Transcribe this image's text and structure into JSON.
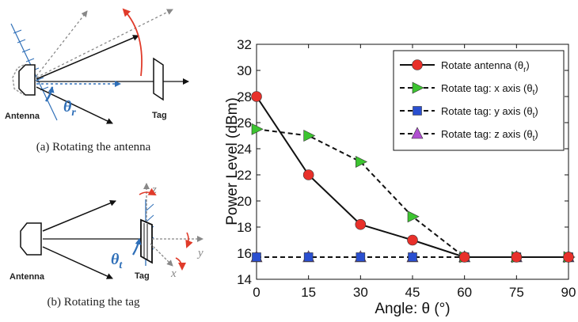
{
  "diagram_a": {
    "antenna_label": "Antenna",
    "tag_label": "Tag",
    "theta_symbol": "θ",
    "theta_sub": "r",
    "caption": "(a) Rotating the antenna"
  },
  "diagram_b": {
    "antenna_label": "Antenna",
    "tag_label": "Tag",
    "theta_symbol": "θ",
    "theta_sub": "t",
    "axis_x": "x",
    "axis_y": "y",
    "axis_z": "z",
    "caption": "(b) Rotating the tag"
  },
  "colors": {
    "antenna_series": "#e8302a",
    "tag_x_series": "#3cc430",
    "tag_y_series": "#2a4fd0",
    "tag_z_series": "#b04fd0",
    "diagram_blue": "#2f6fb8",
    "diagram_red": "#e03b2a"
  },
  "chart_data": {
    "type": "line",
    "xlabel": "Angle: θ (°)",
    "ylabel": "Power Level (dBm)",
    "x": [
      0,
      15,
      30,
      45,
      60,
      75,
      90
    ],
    "xlim": [
      0,
      90
    ],
    "ylim": [
      14,
      32
    ],
    "xticks": [
      "0",
      "15",
      "30",
      "45",
      "60",
      "75",
      "90"
    ],
    "yticks": [
      "14",
      "16",
      "18",
      "20",
      "22",
      "24",
      "26",
      "28",
      "30",
      "32"
    ],
    "grid": false,
    "legend_position": "top-right",
    "series": [
      {
        "name": "Rotate antenna (θ",
        "sub": "r",
        "close": ")",
        "line": "solid",
        "marker": "circle",
        "color": "#e8302a",
        "values": [
          28.0,
          22.0,
          18.2,
          17.0,
          15.7,
          15.7,
          15.7
        ]
      },
      {
        "name": "Rotate tag: x axis (θ",
        "sub": "t",
        "close": ")",
        "line": "dashed",
        "marker": "triangle-right",
        "color": "#3cc430",
        "values": [
          25.5,
          25.0,
          23.0,
          18.8,
          15.7,
          15.7,
          15.7
        ]
      },
      {
        "name": "Rotate tag: y axis (θ",
        "sub": "t",
        "close": ")",
        "line": "dashed",
        "marker": "square",
        "color": "#2a4fd0",
        "values": [
          15.7,
          15.7,
          15.7,
          15.7,
          15.7,
          15.7,
          15.7
        ]
      },
      {
        "name": "Rotate tag: z axis (θ",
        "sub": "t",
        "close": ")",
        "line": "dashed",
        "marker": "triangle-up",
        "color": "#b04fd0",
        "values": [
          15.7,
          15.7,
          15.7,
          15.7,
          15.7,
          15.7,
          15.7
        ]
      }
    ]
  }
}
